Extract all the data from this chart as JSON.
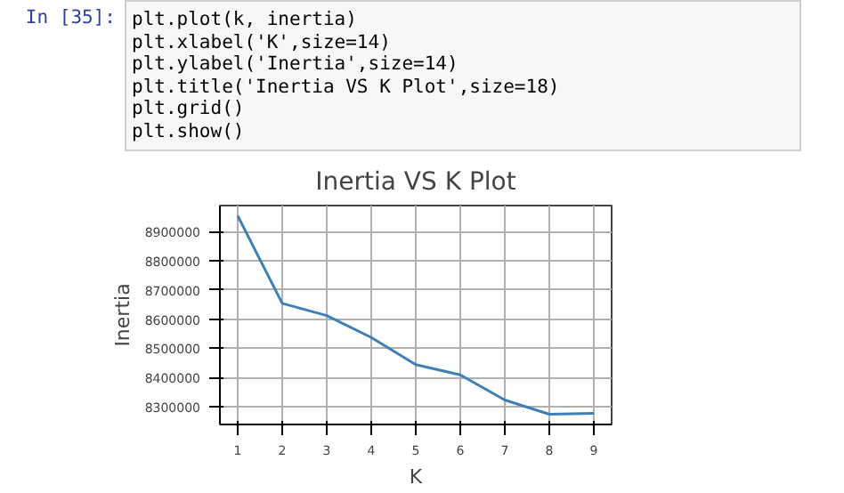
{
  "chart_data": {
    "type": "line",
    "title": "Inertia VS K Plot",
    "xlabel": "K",
    "ylabel": "Inertia",
    "x": [
      1,
      2,
      3,
      4,
      5,
      6,
      7,
      8,
      9
    ],
    "series": [
      {
        "color": "#3f7fb8",
        "values": [
          8954000,
          8654000,
          8612000,
          8537000,
          8444000,
          8409000,
          8323000,
          8274000,
          8277000
        ]
      }
    ],
    "xlim": [
      0.6,
      9.4
    ],
    "xticks": [
      1,
      2,
      3,
      4,
      5,
      6,
      7,
      8,
      9
    ],
    "ylim": [
      8239000,
      8989000
    ],
    "yticks": [
      8300000,
      8400000,
      8500000,
      8600000,
      8700000,
      8800000,
      8900000
    ],
    "grid": true,
    "marker": "none",
    "line_style": "solid",
    "annotations": [
      "In [35]:",
      "plt.plot(k, inertia)",
      "plt.xlabel('K',size=14)",
      "plt.ylabel('Inertia',size=14)",
      "plt.title('Inertia VS K Plot',size=18)",
      "plt.grid()",
      "plt.show()"
    ]
  }
}
